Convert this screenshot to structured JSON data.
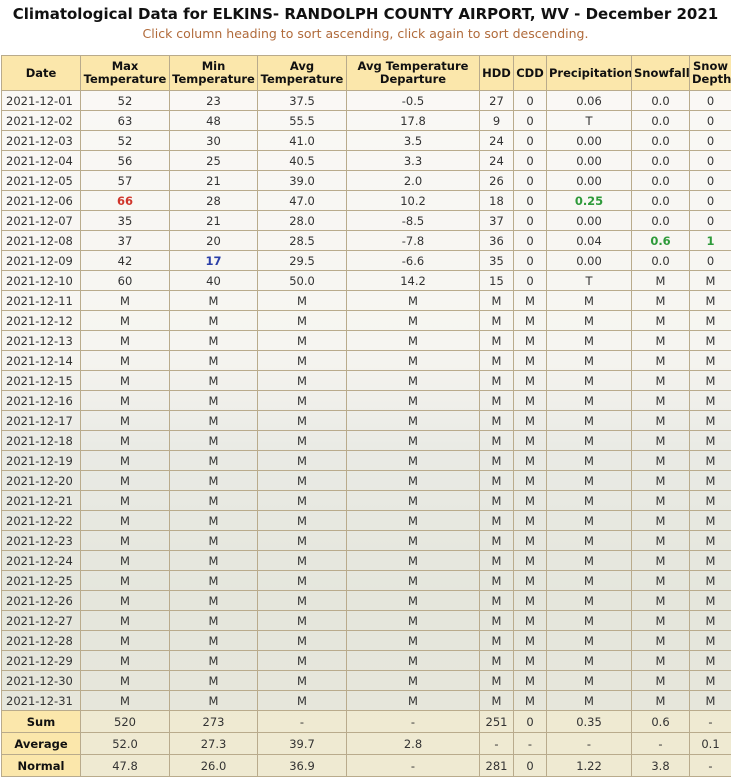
{
  "header": {
    "title": "Climatological Data for ELKINS- RANDOLPH COUNTY AIRPORT, WV - December 2021",
    "subtitle": "Click column heading to sort ascending, click again to sort descending."
  },
  "table": {
    "columns": [
      "Date",
      "Max Temperature",
      "Min Temperature",
      "Avg Temperature",
      "Avg Temperature Departure",
      "HDD",
      "CDD",
      "Precipitation",
      "Snowfall",
      "Snow Depth"
    ],
    "rows": [
      [
        "2021-12-01",
        "52",
        "23",
        "37.5",
        "-0.5",
        "27",
        "0",
        "0.06",
        "0.0",
        "0"
      ],
      [
        "2021-12-02",
        "63",
        "48",
        "55.5",
        "17.8",
        "9",
        "0",
        "T",
        "0.0",
        "0"
      ],
      [
        "2021-12-03",
        "52",
        "30",
        "41.0",
        "3.5",
        "24",
        "0",
        "0.00",
        "0.0",
        "0"
      ],
      [
        "2021-12-04",
        "56",
        "25",
        "40.5",
        "3.3",
        "24",
        "0",
        "0.00",
        "0.0",
        "0"
      ],
      [
        "2021-12-05",
        "57",
        "21",
        "39.0",
        "2.0",
        "26",
        "0",
        "0.00",
        "0.0",
        "0"
      ],
      [
        "2021-12-06",
        {
          "text": "66",
          "color": "#d0352b"
        },
        "28",
        "47.0",
        "10.2",
        "18",
        "0",
        {
          "text": "0.25",
          "color": "#2e9a3a"
        },
        "0.0",
        "0"
      ],
      [
        "2021-12-07",
        "35",
        "21",
        "28.0",
        "-8.5",
        "37",
        "0",
        "0.00",
        "0.0",
        "0"
      ],
      [
        "2021-12-08",
        "37",
        "20",
        "28.5",
        "-7.8",
        "36",
        "0",
        "0.04",
        {
          "text": "0.6",
          "color": "#2e9a3a"
        },
        {
          "text": "1",
          "color": "#2e9a3a"
        }
      ],
      [
        "2021-12-09",
        "42",
        {
          "text": "17",
          "color": "#2b3fa8"
        },
        "29.5",
        "-6.6",
        "35",
        "0",
        "0.00",
        "0.0",
        "0"
      ],
      [
        "2021-12-10",
        "60",
        "40",
        "50.0",
        "14.2",
        "15",
        "0",
        "T",
        "M",
        "M"
      ],
      [
        "2021-12-11",
        "M",
        "M",
        "M",
        "M",
        "M",
        "M",
        "M",
        "M",
        "M"
      ],
      [
        "2021-12-12",
        "M",
        "M",
        "M",
        "M",
        "M",
        "M",
        "M",
        "M",
        "M"
      ],
      [
        "2021-12-13",
        "M",
        "M",
        "M",
        "M",
        "M",
        "M",
        "M",
        "M",
        "M"
      ],
      [
        "2021-12-14",
        "M",
        "M",
        "M",
        "M",
        "M",
        "M",
        "M",
        "M",
        "M"
      ],
      [
        "2021-12-15",
        "M",
        "M",
        "M",
        "M",
        "M",
        "M",
        "M",
        "M",
        "M"
      ],
      [
        "2021-12-16",
        "M",
        "M",
        "M",
        "M",
        "M",
        "M",
        "M",
        "M",
        "M"
      ],
      [
        "2021-12-17",
        "M",
        "M",
        "M",
        "M",
        "M",
        "M",
        "M",
        "M",
        "M"
      ],
      [
        "2021-12-18",
        "M",
        "M",
        "M",
        "M",
        "M",
        "M",
        "M",
        "M",
        "M"
      ],
      [
        "2021-12-19",
        "M",
        "M",
        "M",
        "M",
        "M",
        "M",
        "M",
        "M",
        "M"
      ],
      [
        "2021-12-20",
        "M",
        "M",
        "M",
        "M",
        "M",
        "M",
        "M",
        "M",
        "M"
      ],
      [
        "2021-12-21",
        "M",
        "M",
        "M",
        "M",
        "M",
        "M",
        "M",
        "M",
        "M"
      ],
      [
        "2021-12-22",
        "M",
        "M",
        "M",
        "M",
        "M",
        "M",
        "M",
        "M",
        "M"
      ],
      [
        "2021-12-23",
        "M",
        "M",
        "M",
        "M",
        "M",
        "M",
        "M",
        "M",
        "M"
      ],
      [
        "2021-12-24",
        "M",
        "M",
        "M",
        "M",
        "M",
        "M",
        "M",
        "M",
        "M"
      ],
      [
        "2021-12-25",
        "M",
        "M",
        "M",
        "M",
        "M",
        "M",
        "M",
        "M",
        "M"
      ],
      [
        "2021-12-26",
        "M",
        "M",
        "M",
        "M",
        "M",
        "M",
        "M",
        "M",
        "M"
      ],
      [
        "2021-12-27",
        "M",
        "M",
        "M",
        "M",
        "M",
        "M",
        "M",
        "M",
        "M"
      ],
      [
        "2021-12-28",
        "M",
        "M",
        "M",
        "M",
        "M",
        "M",
        "M",
        "M",
        "M"
      ],
      [
        "2021-12-29",
        "M",
        "M",
        "M",
        "M",
        "M",
        "M",
        "M",
        "M",
        "M"
      ],
      [
        "2021-12-30",
        "M",
        "M",
        "M",
        "M",
        "M",
        "M",
        "M",
        "M",
        "M"
      ],
      [
        "2021-12-31",
        "M",
        "M",
        "M",
        "M",
        "M",
        "M",
        "M",
        "M",
        "M"
      ]
    ],
    "summary": [
      [
        "Sum",
        "520",
        "273",
        "-",
        "-",
        "251",
        "0",
        "0.35",
        "0.6",
        "-"
      ],
      [
        "Average",
        "52.0",
        "27.3",
        "39.7",
        "2.8",
        "-",
        "-",
        "-",
        "-",
        "0.1"
      ],
      [
        "Normal",
        "47.8",
        "26.0",
        "36.9",
        "-",
        "281",
        "0",
        "1.22",
        "3.8",
        "-"
      ]
    ]
  }
}
